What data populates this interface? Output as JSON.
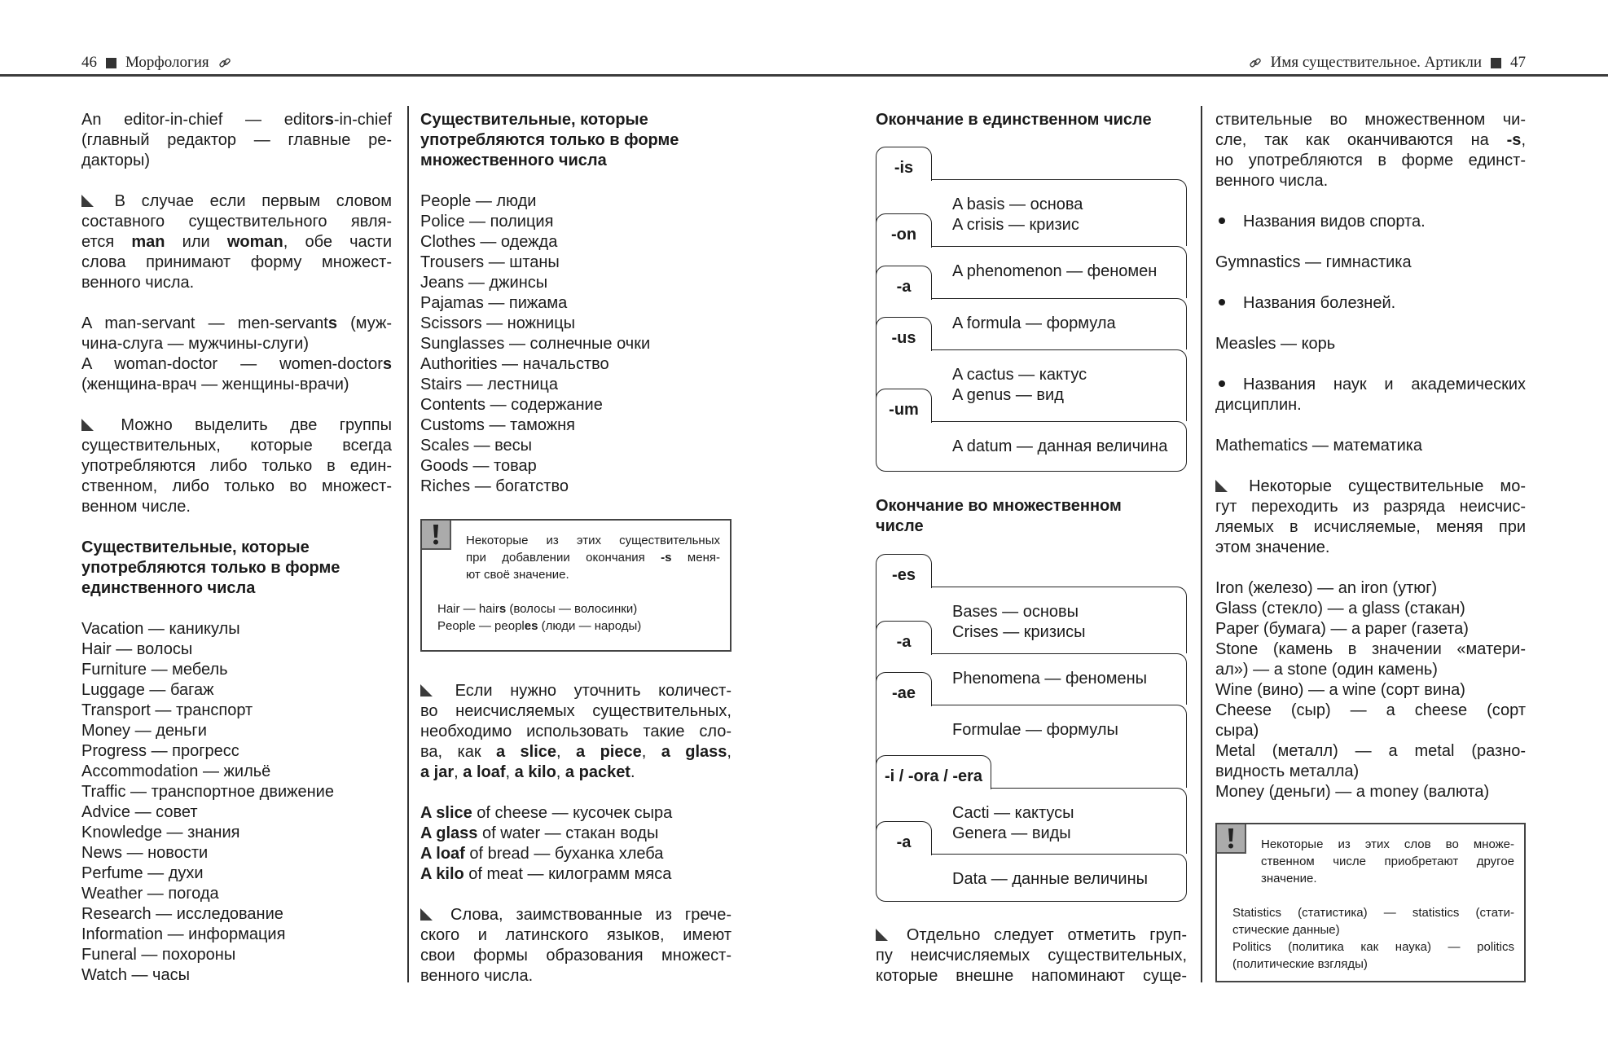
{
  "header": {
    "left_page_number": "46",
    "left_section": "Морфология",
    "right_section": "Имя существительное. Артикли",
    "right_page_number": "47",
    "link_icon": "link-icon",
    "square_icon": "square-icon"
  },
  "left_page": {
    "column1": {
      "blocks": [
        {
          "type": "para",
          "lines": [
            [
              "An editor-in-chief — editor",
              {
                "b": "s"
              },
              "-in-chief"
            ],
            "(главный редактор — главные ре-",
            "дакторы)"
          ]
        },
        {
          "type": "para",
          "marker": "triangle-icon",
          "lines": [
            "В случае если первым словом",
            "составного существительного явля-",
            [
              "ется ",
              {
                "b": "man"
              },
              " или ",
              {
                "b": "woman"
              },
              ", обе части"
            ],
            "слова принимают форму множест-",
            "венного числа."
          ]
        },
        {
          "type": "entries",
          "items": [
            {
              "lines": [
                [
                  "A man-servant — men-servant",
                  {
                    "b": "s"
                  },
                  " (муж-"
                ],
                "чина-слуга — мужчины-слуги)"
              ]
            },
            {
              "lines": [
                [
                  "A woman-doctor — women-doctor",
                  {
                    "b": "s"
                  }
                ],
                "(женщина-врач — женщины-врачи)"
              ]
            }
          ]
        },
        {
          "type": "para",
          "marker": "triangle-icon",
          "lines": [
            "Можно выделить две группы",
            "существительных, которые всегда",
            "употребляются либо только в един-",
            "ственном, либо только во множест-",
            "венном числе."
          ]
        },
        {
          "type": "heading",
          "lines": [
            "Существительные, которые",
            "употребляются только в форме",
            "единственного числа"
          ]
        },
        {
          "type": "list",
          "items": [
            "Vacation — каникулы",
            "Hair — волосы",
            "Furniture — мебель",
            "Luggage — багаж",
            "Transport — транспорт",
            "Money — деньги",
            "Progress — прогресс",
            "Accommodation — жильё",
            "Traffic — транспортное движение",
            "Advice — совет",
            "Knowledge — знания",
            "News — новости",
            "Perfume — духи",
            "Weather — погода",
            "Research — исследование",
            "Information — информация",
            "Funeral — похороны",
            "Watch — часы"
          ]
        }
      ]
    },
    "column2": {
      "top_blocks": [
        {
          "type": "heading",
          "lines": [
            "Существительные, которые",
            "употребляются только в форме",
            "множественного числа"
          ]
        },
        {
          "type": "list",
          "items": [
            "People — люди",
            "Police — полиция",
            "Clothes — одежда",
            "Trousers — штаны",
            "Jeans — джинсы",
            "Pajamas — пижама",
            "Scissors — ножницы",
            "Sunglasses — солнечные очки",
            "Authorities — начальство",
            "Stairs — лестница",
            "Contents — содержание",
            "Customs — таможня",
            "Scales — весы",
            "Goods — товар",
            "Riches — богатство"
          ]
        }
      ],
      "note": {
        "icon": "exclamation-icon",
        "intro": [
          "Некоторые из этих существительных",
          [
            "при добавлении окончания ",
            {
              "b": "-s"
            },
            " меня-"
          ],
          "ют своё значение."
        ],
        "examples": [
          {
            "lines": [
              [
                "Hair — hair",
                {
                  "b": "s"
                },
                " (волосы — волосинки)"
              ]
            ]
          },
          {
            "lines": [
              [
                "People — peopl",
                {
                  "b": "es"
                },
                " (люди — народы)"
              ]
            ]
          }
        ]
      },
      "bottom_blocks": [
        {
          "type": "para",
          "marker": "triangle-icon",
          "lines": [
            "Если нужно уточнить количест-",
            "во неисчисляемых существительных,",
            "необходимо использовать такие сло-",
            [
              "ва, как ",
              {
                "b": "a slice"
              },
              ", ",
              {
                "b": "a piece"
              },
              ", ",
              {
                "b": "a glass"
              },
              ","
            ],
            [
              {
                "b": "a jar"
              },
              ", ",
              {
                "b": "a loaf"
              },
              ", ",
              {
                "b": "a kilo"
              },
              ", ",
              {
                "b": "a packet"
              },
              "."
            ]
          ]
        },
        {
          "type": "list",
          "items": [
            [
              {
                "b": "A slice"
              },
              " of cheese — кусочек сыра"
            ],
            [
              {
                "b": "A glass"
              },
              " of water — стакан воды"
            ],
            [
              {
                "b": "A loaf"
              },
              " of bread — буханка хлеба"
            ],
            [
              {
                "b": "A kilo"
              },
              " of meat — килограмм мяса"
            ]
          ]
        },
        {
          "type": "para",
          "marker": "triangle-icon",
          "lines": [
            "Слова, заимствованные из грече-",
            "ского и латинского языков, имеют",
            "свои формы образования множест-",
            "венного числа."
          ]
        }
      ]
    }
  },
  "right_page": {
    "column3": {
      "singular_heading": [
        {
          "type": "heading",
          "lines": [
            "Окончание в единственном числе"
          ]
        }
      ],
      "singular_table": {
        "rows": [
          {
            "ending": "-is",
            "lines": [
              "A basis — основа",
              "A crisis — кризис"
            ]
          },
          {
            "ending": "-on",
            "lines": [
              "A phenomenon — феномен"
            ]
          },
          {
            "ending": "-a",
            "lines": [
              "A formula — формула"
            ]
          },
          {
            "ending": "-us",
            "lines": [
              "A cactus — кактус",
              "A genus — вид"
            ]
          },
          {
            "ending": "-um",
            "lines": [
              "A datum — данная величина"
            ]
          }
        ]
      },
      "plural_heading": [
        {
          "type": "heading",
          "lines": [
            "Окончание во множественном",
            "числе"
          ]
        }
      ],
      "plural_table": {
        "rows": [
          {
            "ending": "-es",
            "lines": [
              "Bases — основы",
              "Crises — кризисы"
            ]
          },
          {
            "ending": "-a",
            "lines": [
              "Phenomena — феномены"
            ]
          },
          {
            "ending": "-ae",
            "lines": [
              "Formulae — формулы"
            ]
          },
          {
            "ending": "-i / -ora / -era",
            "lines": [
              "Cacti — кактусы",
              "Genera — виды"
            ]
          },
          {
            "ending": "-a",
            "lines": [
              "Data — данные величины"
            ]
          }
        ]
      },
      "bottom_blocks": [
        {
          "type": "para",
          "marker": "triangle-icon",
          "lines": [
            "Отдельно следует отметить груп-",
            "пу неисчисляемых существительных,",
            "которые внешне напоминают суще-"
          ]
        }
      ]
    },
    "column4": {
      "blocks": [
        {
          "type": "para",
          "lines": [
            "ствительные во множественном чи-",
            [
              "сле, так как оканчиваются на ",
              {
                "b": "-s"
              },
              ","
            ],
            "но употребляются в форме единст-",
            "венного числа."
          ]
        },
        {
          "type": "bullet",
          "lines": [
            "Названия видов спорта."
          ]
        },
        {
          "type": "list",
          "items": [
            "Gymnastics — гимнастика"
          ]
        },
        {
          "type": "bullet",
          "lines": [
            "Названия болезней."
          ]
        },
        {
          "type": "list",
          "items": [
            "Measles — корь"
          ]
        },
        {
          "type": "bullet",
          "lines": [
            "Названия наук и академических",
            "дисциплин."
          ]
        },
        {
          "type": "list",
          "items": [
            "Mathematics — математика"
          ]
        },
        {
          "type": "para",
          "marker": "triangle-icon",
          "lines": [
            "Некоторые существительные мо-",
            "гут переходить из разряда неисчис-",
            "ляемых в исчисляемые, меняя при",
            "этом значение."
          ]
        },
        {
          "type": "entries",
          "items": [
            {
              "lines": [
                "Iron (железо) — an iron (утюг)"
              ]
            },
            {
              "lines": [
                "Glass (стекло) — a glass (стакан)"
              ]
            },
            {
              "lines": [
                "Paper (бумага) — a paper (газета)"
              ]
            },
            {
              "lines": [
                "Stone (камень в значении «матери-",
                "ал») — a stone (один камень)"
              ]
            },
            {
              "lines": [
                "Wine (вино) — a wine (сорт вина)"
              ]
            },
            {
              "lines": [
                "Cheese (сыр) — a cheese (сорт",
                "сыра)"
              ]
            },
            {
              "lines": [
                "Metal (металл) — a metal (разно-",
                "видность металла)"
              ]
            },
            {
              "lines": [
                "Money (деньги) — a money (валюта)"
              ]
            }
          ]
        }
      ],
      "note": {
        "icon": "exclamation-icon",
        "intro": [
          "Некоторые из этих слов во множе-",
          "ственном числе приобретают другое",
          "значение."
        ],
        "examples": [
          {
            "lines": [
              "Statistics (статистика) — statistics (стати-",
              "стические данные)"
            ]
          },
          {
            "lines": [
              "Politics (политика как наука) — politics",
              "(политические взгляды)"
            ]
          }
        ]
      }
    }
  }
}
